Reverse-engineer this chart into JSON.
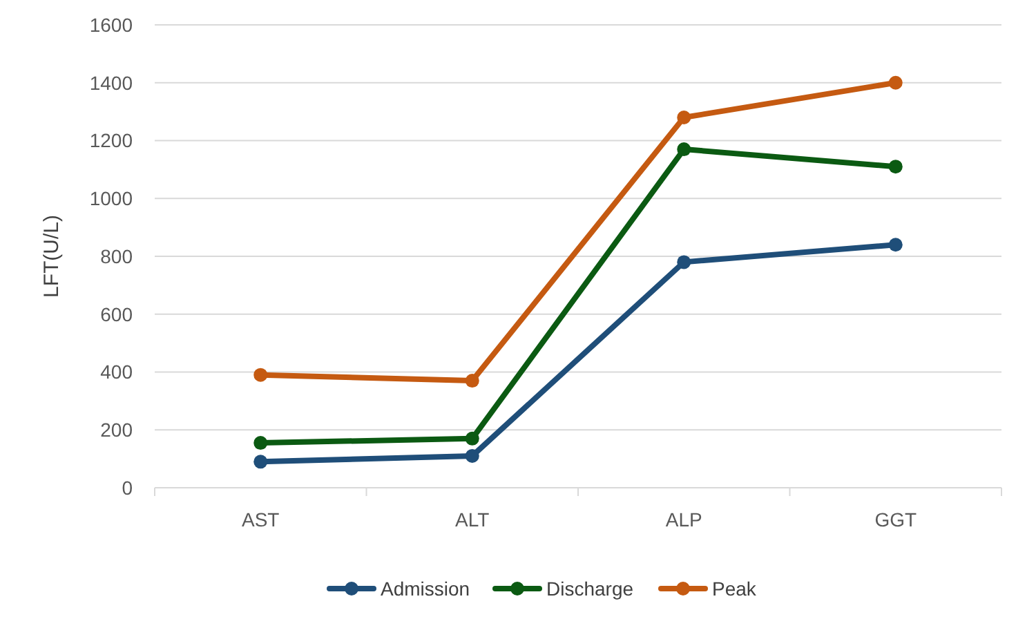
{
  "chart_data": {
    "type": "line",
    "ylabel": "LFT(U/L)",
    "categories": [
      "AST",
      "ALT",
      "ALP",
      "GGT"
    ],
    "series": [
      {
        "name": "Admission",
        "color": "#1f4e79",
        "values": [
          90,
          110,
          780,
          840
        ]
      },
      {
        "name": "Discharge",
        "color": "#0b5a12",
        "values": [
          155,
          170,
          1170,
          1110
        ]
      },
      {
        "name": "Peak",
        "color": "#c55a11",
        "values": [
          390,
          370,
          1280,
          1400
        ]
      }
    ],
    "ylim": [
      0,
      1600
    ],
    "yticks": [
      0,
      200,
      400,
      600,
      800,
      1000,
      1200,
      1400,
      1600
    ],
    "grid": "y",
    "legend": "bottom",
    "marker": "circle",
    "line_style": "solid"
  }
}
